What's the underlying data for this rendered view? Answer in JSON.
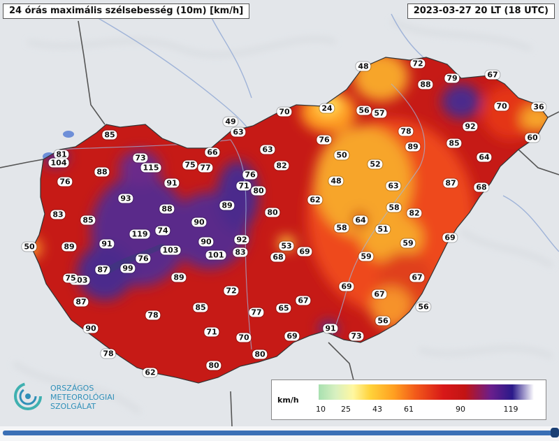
{
  "header": {
    "title": "24 órás maximális szélsebesség (10m) [km/h]",
    "timestamp": "2023-03-27 20 LT (18 UTC)"
  },
  "legend": {
    "unit": "km/h",
    "ticks": [
      "10",
      "25",
      "43",
      "61",
      "90",
      "119"
    ],
    "colors": [
      "#a8e0b0",
      "#fff7a0",
      "#ffd23a",
      "#f25a1a",
      "#c21414",
      "#6a1e8c",
      "#2a1a8a"
    ]
  },
  "logo": {
    "line1": "ORSZÁGOS",
    "line2": "METEOROLÓGIAI",
    "line3": "SZOLGÁLAT"
  },
  "stations": [
    "48",
    "72",
    "79",
    "67",
    "88",
    "70",
    "24",
    "56",
    "57",
    "70",
    "36",
    "92",
    "49",
    "63",
    "76",
    "78",
    "89",
    "85",
    "60",
    "66",
    "63",
    "50",
    "52",
    "64",
    "85",
    "81",
    "73",
    "75",
    "77",
    "76",
    "104",
    "82",
    "88",
    "115",
    "71",
    "80",
    "48",
    "63",
    "87",
    "68",
    "76",
    "91",
    "93",
    "88",
    "62",
    "89",
    "58",
    "82",
    "83",
    "85",
    "90",
    "80",
    "64",
    "51",
    "119",
    "74",
    "58",
    "69",
    "91",
    "90",
    "92",
    "53",
    "59",
    "50",
    "89",
    "103",
    "101",
    "83",
    "69",
    "68",
    "59",
    "99",
    "87",
    "76",
    "103",
    "75",
    "89",
    "69",
    "67",
    "72",
    "87",
    "67",
    "85",
    "65",
    "67",
    "78",
    "77",
    "56",
    "90",
    "71",
    "91",
    "70",
    "69",
    "73",
    "56",
    "78",
    "80",
    "80",
    "62"
  ],
  "colors": {
    "land_background": "#e3e6ea",
    "country_fill": "#c61a16",
    "strong_wind": "#4b2a8c",
    "weak_wind": "#f7a52a"
  }
}
